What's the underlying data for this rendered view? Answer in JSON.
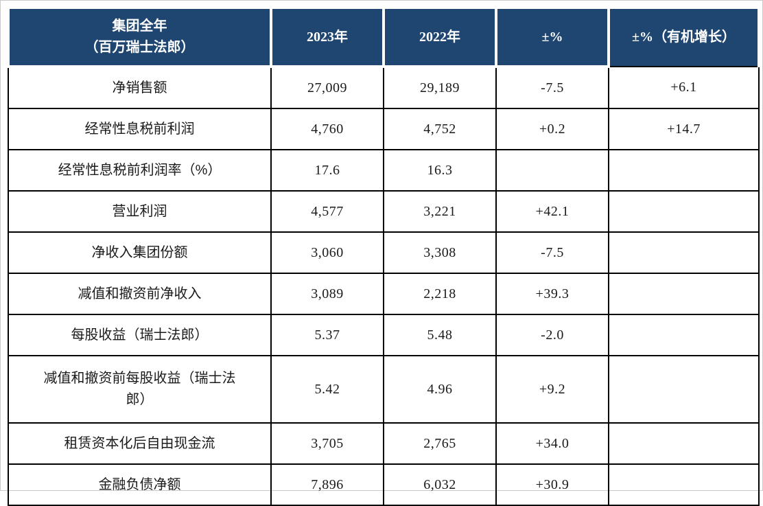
{
  "page": {
    "background_color": "#ffffff",
    "header_background_color": "#1f4571",
    "header_text_color": "#ffffff",
    "grid_border_color": "#000000"
  },
  "table": {
    "header": {
      "metric": "集团全年\n（百万瑞士法郎）",
      "y2023": "2023年",
      "y2022": "2022年",
      "pct": "±%",
      "pct_organic": "±%（有机增长）"
    },
    "rows": [
      {
        "label": "净销售额",
        "y2023": "27,009",
        "y2022": "29,189",
        "pct": "-7.5",
        "pct_organic": "+6.1"
      },
      {
        "label": "经常性息税前利润",
        "y2023": "4,760",
        "y2022": "4,752",
        "pct": "+0.2",
        "pct_organic": "+14.7"
      },
      {
        "label": "经常性息税前利润率（%）",
        "y2023": "17.6",
        "y2022": "16.3",
        "pct": "",
        "pct_organic": ""
      },
      {
        "label": "营业利润",
        "y2023": "4,577",
        "y2022": "3,221",
        "pct": "+42.1",
        "pct_organic": ""
      },
      {
        "label": "净收入集团份额",
        "y2023": "3,060",
        "y2022": "3,308",
        "pct": "-7.5",
        "pct_organic": ""
      },
      {
        "label": "减值和撤资前净收入",
        "y2023": "3,089",
        "y2022": "2,218",
        "pct": "+39.3",
        "pct_organic": ""
      },
      {
        "label": "每股收益（瑞士法郎）",
        "y2023": "5.37",
        "y2022": "5.48",
        "pct": "-2.0",
        "pct_organic": ""
      },
      {
        "label": "减值和撤资前每股收益（瑞士法郎）",
        "y2023": "5.42",
        "y2022": "4.96",
        "pct": "+9.2",
        "pct_organic": ""
      },
      {
        "label": "租赁资本化后自由现金流",
        "y2023": "3,705",
        "y2022": "2,765",
        "pct": "+34.0",
        "pct_organic": ""
      },
      {
        "label": "金融负债净额",
        "y2023": "7,896",
        "y2022": "6,032",
        "pct": "+30.9",
        "pct_organic": ""
      }
    ]
  }
}
